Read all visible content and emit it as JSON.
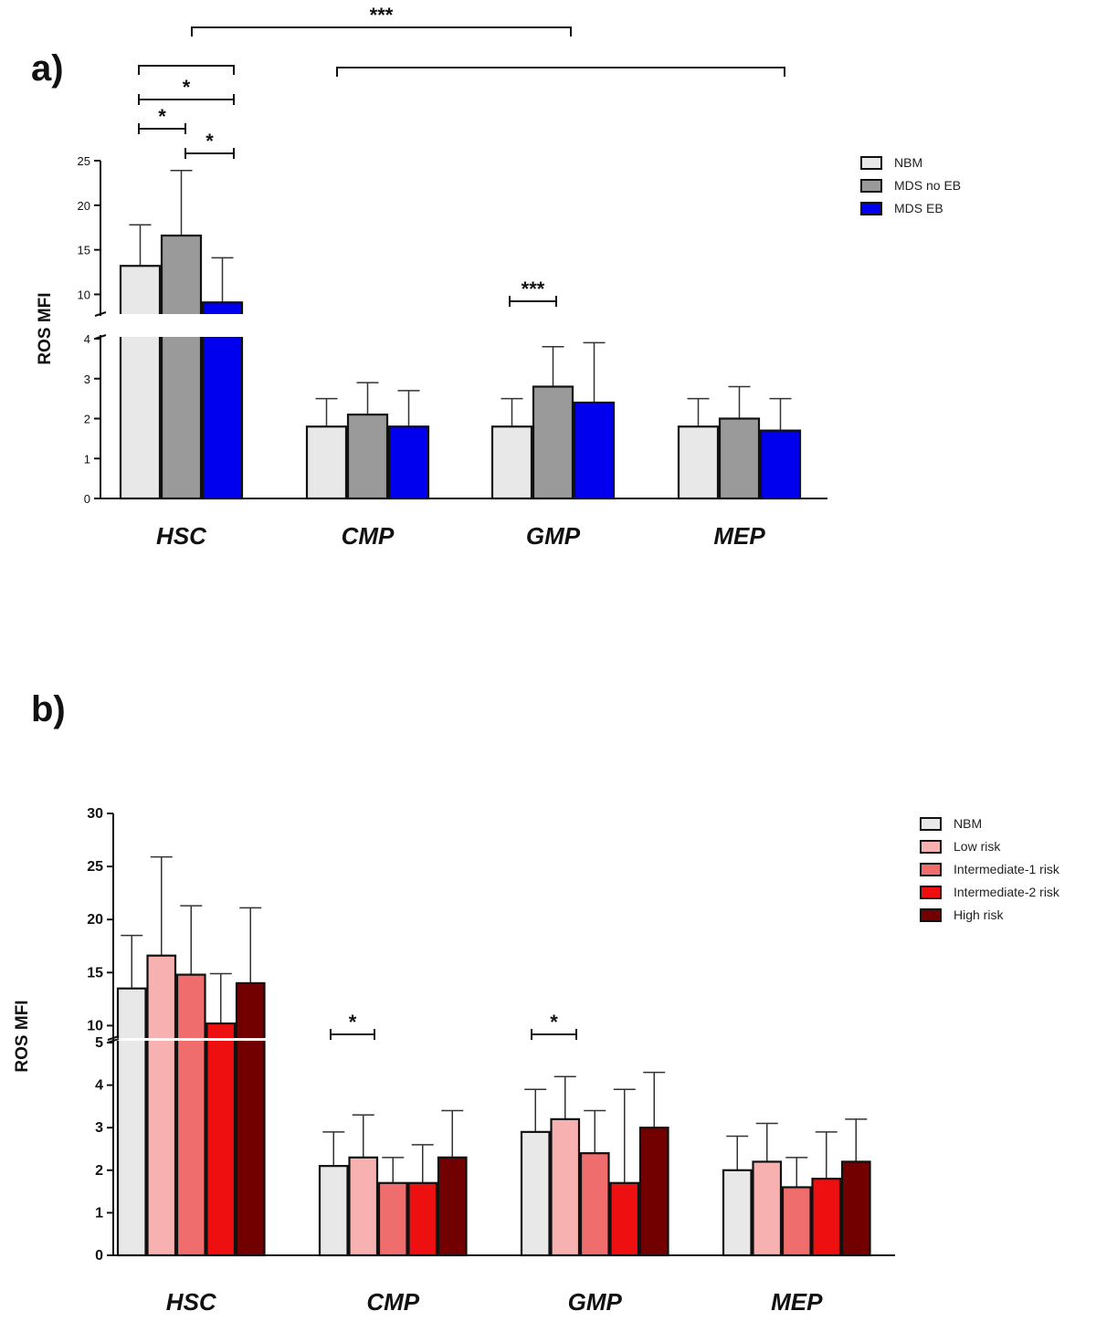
{
  "chart_data": [
    {
      "panel": "a)",
      "type": "bar",
      "categories": [
        "HSC",
        "CMP",
        "GMP",
        "MEP"
      ],
      "ylabel": "ROS MFI",
      "y_axis_break": true,
      "lower_ylim": [
        0,
        4
      ],
      "lower_ticks": [
        "0",
        "1",
        "2",
        "3",
        "4"
      ],
      "upper_ylim": [
        8,
        25
      ],
      "upper_ticks": [
        "10",
        "15",
        "20",
        "25"
      ],
      "legend_position": "top-right",
      "series": [
        {
          "name": "NBM",
          "color": "#e8e8e8",
          "values": [
            13.2,
            1.8,
            1.8,
            1.8
          ],
          "errors": [
            4.6,
            0.7,
            0.7,
            0.7
          ]
        },
        {
          "name": "MDS no EB",
          "color": "#9a9a9a",
          "values": [
            16.6,
            2.1,
            2.8,
            2.0
          ],
          "errors": [
            7.3,
            0.8,
            1.0,
            0.8
          ]
        },
        {
          "name": "MDS EB",
          "color": "#0000ee",
          "values": [
            9.1,
            1.8,
            2.4,
            1.7
          ],
          "errors": [
            5.0,
            0.9,
            1.5,
            0.8
          ]
        }
      ],
      "significance": [
        {
          "label": "*",
          "between": "NBM vs MDS EB",
          "category": "HSC"
        },
        {
          "label": "*",
          "between": "NBM vs MDS no EB",
          "category": "HSC"
        },
        {
          "label": "*",
          "between": "MDS no EB vs MDS EB",
          "category": "HSC"
        },
        {
          "label": "***",
          "between": "NBM vs MDS no EB",
          "category": "GMP"
        },
        {
          "label": "***",
          "between": "HSC vs GMP"
        }
      ]
    },
    {
      "panel": "b)",
      "type": "bar",
      "categories": [
        "HSC",
        "CMP",
        "GMP",
        "MEP"
      ],
      "ylabel": "ROS MFI",
      "y_axis_break": true,
      "lower_ylim": [
        0,
        5
      ],
      "lower_ticks": [
        "0",
        "1",
        "2",
        "3",
        "4",
        "5"
      ],
      "upper_ylim": [
        9,
        30
      ],
      "upper_ticks": [
        "10",
        "15",
        "20",
        "25",
        "30"
      ],
      "legend_position": "top-right",
      "series": [
        {
          "name": "NBM",
          "color": "#e8e8e8",
          "values": [
            13.5,
            2.1,
            2.9,
            2.0
          ],
          "errors": [
            5.0,
            0.8,
            1.0,
            0.8
          ]
        },
        {
          "name": "Low risk",
          "color": "#f7b1b1",
          "values": [
            16.6,
            2.3,
            3.2,
            2.2
          ],
          "errors": [
            9.3,
            1.0,
            1.0,
            0.9
          ]
        },
        {
          "name": "Intermediate-1 risk",
          "color": "#f06d6d",
          "values": [
            14.8,
            1.7,
            2.4,
            1.6
          ],
          "errors": [
            6.5,
            0.6,
            1.0,
            0.7
          ]
        },
        {
          "name": "Intermediate-2 risk",
          "color": "#ee1010",
          "values": [
            10.2,
            1.7,
            1.7,
            1.8
          ],
          "errors": [
            4.7,
            0.9,
            2.2,
            1.1
          ]
        },
        {
          "name": "High risk",
          "color": "#730000",
          "values": [
            14.0,
            2.3,
            3.0,
            2.2
          ],
          "errors": [
            7.1,
            1.1,
            1.3,
            1.0
          ]
        }
      ],
      "significance": [
        {
          "label": "*",
          "between": "NBM vs Low risk",
          "category": "CMP"
        },
        {
          "label": "*",
          "between": "NBM vs Low risk",
          "category": "GMP"
        }
      ]
    }
  ]
}
